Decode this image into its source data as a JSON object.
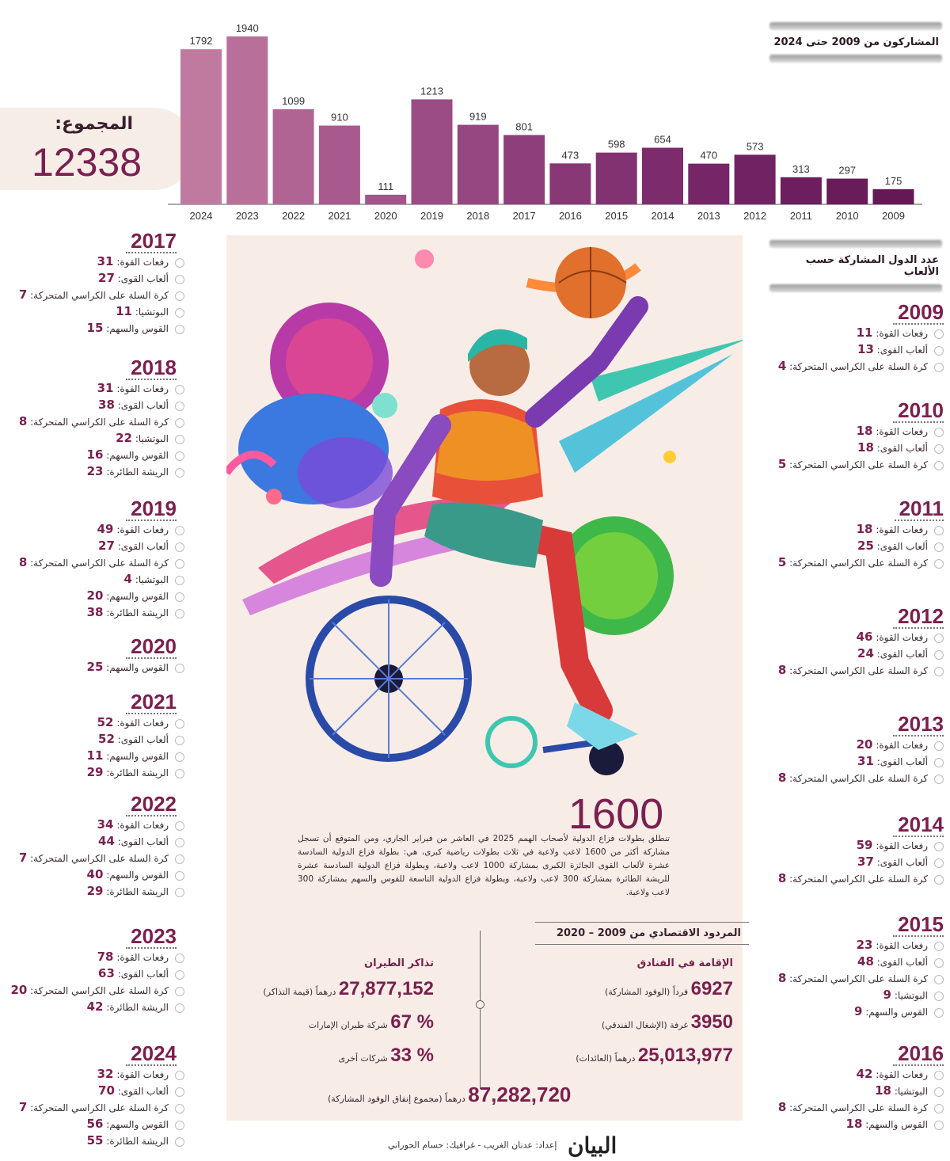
{
  "header": {
    "participants_title": "المشاركون من 2009 حتى 2024",
    "countries_title": "عدد الدول المشاركة حسب الألعاب"
  },
  "total": {
    "label": "المجموع:",
    "value": "12338"
  },
  "chart_data": {
    "type": "bar",
    "title": "المشاركون من 2009 حتى 2024",
    "categories": [
      "2024",
      "2023",
      "2022",
      "2021",
      "2020",
      "2019",
      "2018",
      "2017",
      "2016",
      "2015",
      "2014",
      "2013",
      "2012",
      "2011",
      "2010",
      "2009"
    ],
    "values": [
      1792,
      1940,
      1099,
      910,
      111,
      1213,
      919,
      801,
      473,
      598,
      654,
      470,
      573,
      313,
      297,
      175
    ],
    "colors": [
      "#c07aa0",
      "#b8709a",
      "#b06494",
      "#a85a8e",
      "#a4548a",
      "#9c4c84",
      "#964680",
      "#8e3e7a",
      "#883874",
      "#823270",
      "#7c2c6c",
      "#762666",
      "#702262",
      "#6c1e5e",
      "#681c5a",
      "#641856"
    ],
    "ylim": [
      0,
      2000
    ]
  },
  "years_left": [
    {
      "year": "2017",
      "rows": [
        {
          "label": "رفعات القوة:",
          "num": "31"
        },
        {
          "label": "ألعاب القوى:",
          "num": "27"
        },
        {
          "label": "كرة السلة على الكراسي المتحركة:",
          "num": "7"
        },
        {
          "label": "البوتشيا:",
          "num": "11"
        },
        {
          "label": "القوس والسهم:",
          "num": "15"
        }
      ]
    },
    {
      "year": "2018",
      "rows": [
        {
          "label": "رفعات القوة:",
          "num": "31"
        },
        {
          "label": "ألعاب القوى:",
          "num": "38"
        },
        {
          "label": "كرة السلة على الكراسي المتحركة:",
          "num": "8"
        },
        {
          "label": "البوتشيا:",
          "num": "22"
        },
        {
          "label": "القوس والسهم:",
          "num": "16"
        },
        {
          "label": "الريشة الطائرة:",
          "num": "23"
        }
      ]
    },
    {
      "year": "2019",
      "rows": [
        {
          "label": "رفعات القوة:",
          "num": "49"
        },
        {
          "label": "ألعاب القوى:",
          "num": "27"
        },
        {
          "label": "كرة السلة على الكراسي المتحركة:",
          "num": "8"
        },
        {
          "label": "البوتشيا:",
          "num": "4"
        },
        {
          "label": "القوس والسهم:",
          "num": "20"
        },
        {
          "label": "الريشة الطائرة:",
          "num": "38"
        }
      ]
    },
    {
      "year": "2020",
      "rows": [
        {
          "label": "القوس والسهم:",
          "num": "25"
        }
      ]
    },
    {
      "year": "2021",
      "rows": [
        {
          "label": "رفعات القوة:",
          "num": "52"
        },
        {
          "label": "ألعاب القوى:",
          "num": "52"
        },
        {
          "label": "القوس والسهم:",
          "num": "11"
        },
        {
          "label": "الريشة الطائرة:",
          "num": "29"
        }
      ]
    },
    {
      "year": "2022",
      "rows": [
        {
          "label": "رفعات القوة:",
          "num": "34"
        },
        {
          "label": "ألعاب القوى:",
          "num": "44"
        },
        {
          "label": "كرة السلة على الكراسي المتحركة:",
          "num": "7"
        },
        {
          "label": "القوس والسهم:",
          "num": "40"
        },
        {
          "label": "الريشة الطائرة:",
          "num": "29"
        }
      ]
    },
    {
      "year": "2023",
      "rows": [
        {
          "label": "رفعات القوة:",
          "num": "78"
        },
        {
          "label": "ألعاب القوى:",
          "num": "63"
        },
        {
          "label": "كرة السلة على الكراسي المتحركة:",
          "num": "20"
        },
        {
          "label": "الريشة الطائرة:",
          "num": "42"
        }
      ]
    },
    {
      "year": "2024",
      "rows": [
        {
          "label": "رفعات القوة:",
          "num": "32"
        },
        {
          "label": "ألعاب القوى:",
          "num": "70"
        },
        {
          "label": "كرة السلة على الكراسي المتحركة:",
          "num": "7"
        },
        {
          "label": "القوس والسهم:",
          "num": "56"
        },
        {
          "label": "الريشة الطائرة:",
          "num": "55"
        }
      ]
    }
  ],
  "years_right": [
    {
      "year": "2009",
      "rows": [
        {
          "label": "رفعات القوة:",
          "num": "11"
        },
        {
          "label": "ألعاب القوى:",
          "num": "13"
        },
        {
          "label": "كرة السلة على الكراسي المتحركة:",
          "num": "4"
        }
      ]
    },
    {
      "year": "2010",
      "rows": [
        {
          "label": "رفعات القوة:",
          "num": "18"
        },
        {
          "label": "ألعاب القوى:",
          "num": "18"
        },
        {
          "label": "كرة السلة على الكراسي المتحركة:",
          "num": "5"
        }
      ]
    },
    {
      "year": "2011",
      "rows": [
        {
          "label": "رفعات القوة:",
          "num": "18"
        },
        {
          "label": "ألعاب القوى:",
          "num": "25"
        },
        {
          "label": "كرة السلة على الكراسي المتحركة:",
          "num": "5"
        }
      ]
    },
    {
      "year": "2012",
      "rows": [
        {
          "label": "رفعات القوة:",
          "num": "46"
        },
        {
          "label": "ألعاب القوى:",
          "num": "24"
        },
        {
          "label": "كرة السلة على الكراسي المتحركة:",
          "num": "8"
        }
      ]
    },
    {
      "year": "2013",
      "rows": [
        {
          "label": "رفعات القوة:",
          "num": "20"
        },
        {
          "label": "ألعاب القوى:",
          "num": "31"
        },
        {
          "label": "كرة السلة على الكراسي المتحركة:",
          "num": "8"
        }
      ]
    },
    {
      "year": "2014",
      "rows": [
        {
          "label": "رفعات القوة:",
          "num": "59"
        },
        {
          "label": "ألعاب القوى:",
          "num": "37"
        },
        {
          "label": "كرة السلة على الكراسي المتحركة:",
          "num": "8"
        }
      ]
    },
    {
      "year": "2015",
      "rows": [
        {
          "label": "رفعات القوة:",
          "num": "23"
        },
        {
          "label": "ألعاب القوى:",
          "num": "48"
        },
        {
          "label": "كرة السلة على الكراسي المتحركة:",
          "num": "8"
        },
        {
          "label": "البوتشيا:",
          "num": "9"
        },
        {
          "label": "القوس والسهم:",
          "num": "9"
        }
      ]
    },
    {
      "year": "2016",
      "rows": [
        {
          "label": "رفعات القوة:",
          "num": "42"
        },
        {
          "label": "البوتشيا:",
          "num": "18"
        },
        {
          "label": "كرة السلة على الكراسي المتحركة:",
          "num": "8"
        },
        {
          "label": "القوس والسهم:",
          "num": "18"
        }
      ]
    }
  ],
  "article": {
    "big_number": "1600",
    "paragraph": "تنطلق بطولات فزاع الدولية لأصحاب الهمم 2025 في العاشر من فبراير الجاري، ومن المتوقع أن تسجل مشاركة أكثر من 1600 لاعب ولاعبة في ثلاث بطولات رياضية كبرى، هي: بطولة فزاع الدولية السادسة عشرة لألعاب القوى الجائزة الكبرى بمشاركة 1000 لاعب ولاعبة، وبطولة فزاع الدولية السادسة عشرة للريشة الطائرة بمشاركة 300 لاعب ولاعبة، وبطولة فزاع الدولية التاسعة للقوس والسهم بمشاركة 300 لاعب ولاعبة."
  },
  "economic": {
    "title": "المردود الاقتصادي من 2009 – 2020",
    "hotels": {
      "heading": "الإقامة في الفنادق",
      "rows": [
        {
          "num": "6927",
          "label": "فرداً (الوفود المشاركة)"
        },
        {
          "num": "3950",
          "label": "غرفة (الإشغال الفندقي)"
        },
        {
          "num": "25,013,977",
          "label": "درهماً (العائدات)"
        }
      ]
    },
    "flights": {
      "heading": "تذاكر الطيران",
      "rows": [
        {
          "num": "27,877,152",
          "label": "درهماً (قيمة التذاكر)"
        },
        {
          "num": "% 67",
          "label": "شركة طيران الإمارات"
        },
        {
          "num": "% 33",
          "label": "شركات أخرى"
        }
      ]
    },
    "total_num": "87,282,720",
    "total_label": "درهماً (مجموع إنفاق الوفود المشاركة)"
  },
  "footer": {
    "logo": "البيان",
    "credits": "إعداد: عدنان الغريب - غرافيك: حسام الحوراني"
  }
}
